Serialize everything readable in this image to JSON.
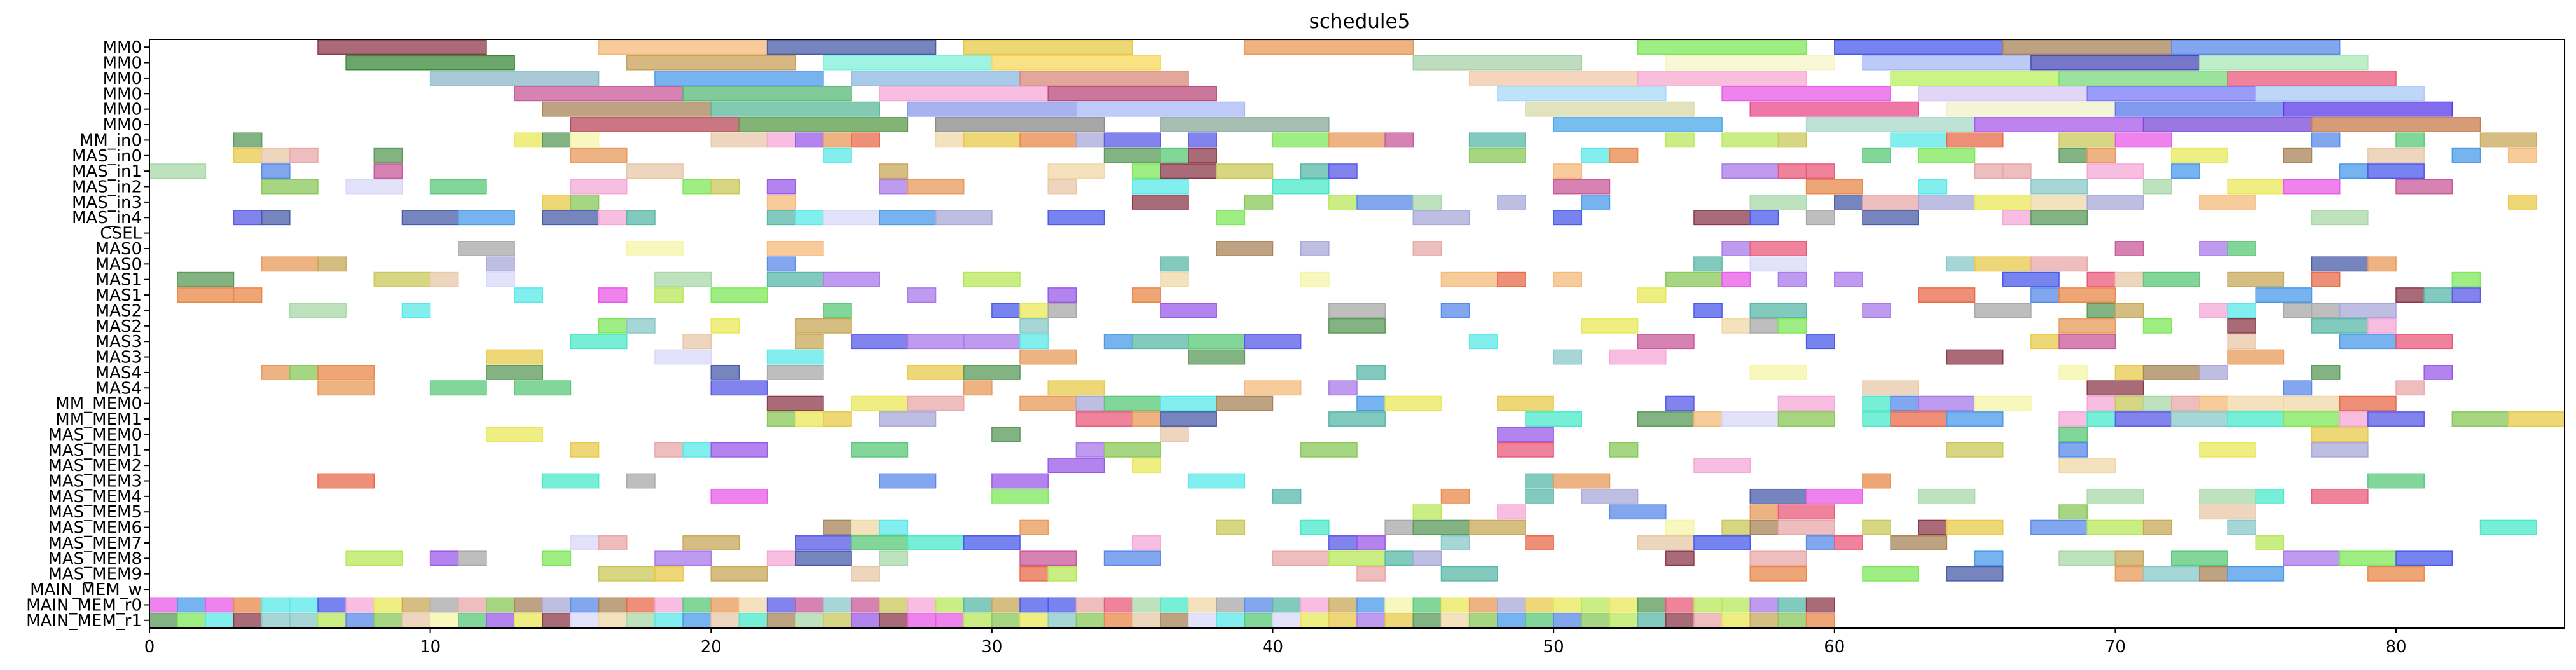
{
  "chart_data": {
    "type": "gantt",
    "title": "schedule5",
    "xlabel": "",
    "ylabel": "",
    "xlim": [
      0,
      86
    ],
    "x_ticks": [
      0,
      10,
      20,
      30,
      40,
      50,
      60,
      70,
      80
    ],
    "grid": false,
    "legend": "none",
    "resources": [
      "MM0",
      "MM0",
      "MM0",
      "MM0",
      "MM0",
      "MM0",
      "MM_in0",
      "MAS_in0",
      "MAS_in1",
      "MAS_in2",
      "MAS_in3",
      "MAS_in4",
      "CSEL",
      "MAS0",
      "MAS0",
      "MAS1",
      "MAS1",
      "MAS2",
      "MAS2",
      "MAS3",
      "MAS3",
      "MAS4",
      "MAS4",
      "MM_MEM0",
      "MM_MEM1",
      "MAS_MEM0",
      "MAS_MEM1",
      "MAS_MEM2",
      "MAS_MEM3",
      "MAS_MEM4",
      "MAS_MEM5",
      "MAS_MEM6",
      "MAS_MEM7",
      "MAS_MEM8",
      "MAS_MEM9",
      "MAIN_MEM_w",
      "MAIN_MEM_r0",
      "MAIN_MEM_r1"
    ],
    "palette": [
      "#8b3a4a",
      "#f5b97a",
      "#4a5ca8",
      "#e8c94a",
      "#e89a5a",
      "#7ee85a",
      "#4a5ae8",
      "#a8845a",
      "#5a8ae8",
      "#5a9a5a",
      "#8ac8c8",
      "#4a9ae8",
      "#e8a8a8",
      "#c85a9a",
      "#e85a7a",
      "#b8e85a",
      "#5ab8a8",
      "#f0d8a8",
      "#e8c8a8",
      "#a8d8a8",
      "#f5f5a8",
      "#d8d8f8",
      "#a8a8d8",
      "#9a5ae8",
      "#e85ae8",
      "#5ae8e8",
      "#e8e85a",
      "#5a5ae8",
      "#a8a8a8",
      "#e86a4a",
      "#8ac85a",
      "#c8a85a",
      "#5ac878",
      "#f5a8d8",
      "#c8c85a",
      "#a87ae8",
      "#4ae8c8",
      "#e8884a"
    ],
    "tasks": [
      {
        "row": 0,
        "start": 6,
        "end": 12,
        "color": "#8b3a4a"
      },
      {
        "row": 0,
        "start": 16,
        "end": 22,
        "color": "#f5b97a"
      },
      {
        "row": 0,
        "start": 22,
        "end": 28,
        "color": "#4a5ca8"
      },
      {
        "row": 0,
        "start": 29,
        "end": 35,
        "color": "#e8c94a"
      },
      {
        "row": 0,
        "start": 39,
        "end": 45,
        "color": "#e89a5a"
      },
      {
        "row": 0,
        "start": 53,
        "end": 59,
        "color": "#7ee85a"
      },
      {
        "row": 0,
        "start": 60,
        "end": 66,
        "color": "#4a5ae8"
      },
      {
        "row": 0,
        "start": 66,
        "end": 72,
        "color": "#a8845a"
      },
      {
        "row": 0,
        "start": 72,
        "end": 78,
        "color": "#5a8ae8"
      },
      {
        "row": 1,
        "start": 7,
        "end": 13,
        "color": "#3a8a3a"
      },
      {
        "row": 1,
        "start": 17,
        "end": 23,
        "color": "#c8a05a"
      },
      {
        "row": 1,
        "start": 24,
        "end": 30,
        "color": "#7ef0d8"
      },
      {
        "row": 1,
        "start": 30,
        "end": 36,
        "color": "#f5d85a"
      },
      {
        "row": 1,
        "start": 45,
        "end": 51,
        "color": "#a8d0a8"
      },
      {
        "row": 1,
        "start": 54,
        "end": 60,
        "color": "#f5f5c8"
      },
      {
        "row": 1,
        "start": 61,
        "end": 67,
        "color": "#a8b8f5"
      },
      {
        "row": 1,
        "start": 67,
        "end": 73,
        "color": "#4a4ab8"
      },
      {
        "row": 1,
        "start": 73,
        "end": 79,
        "color": "#a8e8b8"
      },
      {
        "row": 2,
        "start": 10,
        "end": 16,
        "color": "#8ab8c8"
      },
      {
        "row": 2,
        "start": 18,
        "end": 24,
        "color": "#4a9ae8"
      },
      {
        "row": 2,
        "start": 25,
        "end": 31,
        "color": "#8ab8e0"
      },
      {
        "row": 2,
        "start": 31,
        "end": 37,
        "color": "#d8887a"
      },
      {
        "row": 2,
        "start": 47,
        "end": 53,
        "color": "#f0c8a8"
      },
      {
        "row": 2,
        "start": 53,
        "end": 59,
        "color": "#f5a8d0"
      },
      {
        "row": 2,
        "start": 62,
        "end": 68,
        "color": "#b8f05a"
      },
      {
        "row": 2,
        "start": 68,
        "end": 74,
        "color": "#7ad87a"
      },
      {
        "row": 2,
        "start": 74,
        "end": 80,
        "color": "#e85a7a"
      },
      {
        "row": 3,
        "start": 13,
        "end": 19,
        "color": "#c85a9a"
      },
      {
        "row": 3,
        "start": 19,
        "end": 25,
        "color": "#5ab87a"
      },
      {
        "row": 3,
        "start": 26,
        "end": 32,
        "color": "#f5a8d8"
      },
      {
        "row": 3,
        "start": 32,
        "end": 38,
        "color": "#b84a7a"
      },
      {
        "row": 3,
        "start": 48,
        "end": 54,
        "color": "#a8d8f5"
      },
      {
        "row": 3,
        "start": 56,
        "end": 62,
        "color": "#e85ae8"
      },
      {
        "row": 3,
        "start": 63,
        "end": 69,
        "color": "#d8c8f5"
      },
      {
        "row": 3,
        "start": 69,
        "end": 75,
        "color": "#7a7af5"
      },
      {
        "row": 3,
        "start": 75,
        "end": 81,
        "color": "#a8c8f5"
      },
      {
        "row": 4,
        "start": 14,
        "end": 20,
        "color": "#a8845a"
      },
      {
        "row": 4,
        "start": 20,
        "end": 26,
        "color": "#5ab89a"
      },
      {
        "row": 4,
        "start": 27,
        "end": 33,
        "color": "#8a9ae8"
      },
      {
        "row": 4,
        "start": 33,
        "end": 39,
        "color": "#a8b8f5"
      },
      {
        "row": 4,
        "start": 49,
        "end": 55,
        "color": "#d8d8a8"
      },
      {
        "row": 4,
        "start": 57,
        "end": 63,
        "color": "#e84a8a"
      },
      {
        "row": 4,
        "start": 64,
        "end": 70,
        "color": "#f0f0c8"
      },
      {
        "row": 4,
        "start": 70,
        "end": 76,
        "color": "#5a7ae8"
      },
      {
        "row": 4,
        "start": 76,
        "end": 82,
        "color": "#5a3ae8"
      },
      {
        "row": 5,
        "start": 15,
        "end": 21,
        "color": "#b84a5a"
      },
      {
        "row": 5,
        "start": 21,
        "end": 27,
        "color": "#5a9a4a"
      },
      {
        "row": 5,
        "start": 28,
        "end": 34,
        "color": "#8a8a8a"
      },
      {
        "row": 5,
        "start": 36,
        "end": 42,
        "color": "#8aa89a"
      },
      {
        "row": 5,
        "start": 50,
        "end": 56,
        "color": "#4aa8e8"
      },
      {
        "row": 5,
        "start": 59,
        "end": 65,
        "color": "#a8d8c8"
      },
      {
        "row": 5,
        "start": 65,
        "end": 71,
        "color": "#a85ae8"
      },
      {
        "row": 5,
        "start": 71,
        "end": 77,
        "color": "#7a4ad8"
      },
      {
        "row": 5,
        "start": 77,
        "end": 83,
        "color": "#c87a4a"
      },
      {
        "row": 36,
        "start": 0,
        "end": 60,
        "color": "multi"
      },
      {
        "row": 37,
        "start": 0,
        "end": 60,
        "color": "multi"
      }
    ]
  }
}
